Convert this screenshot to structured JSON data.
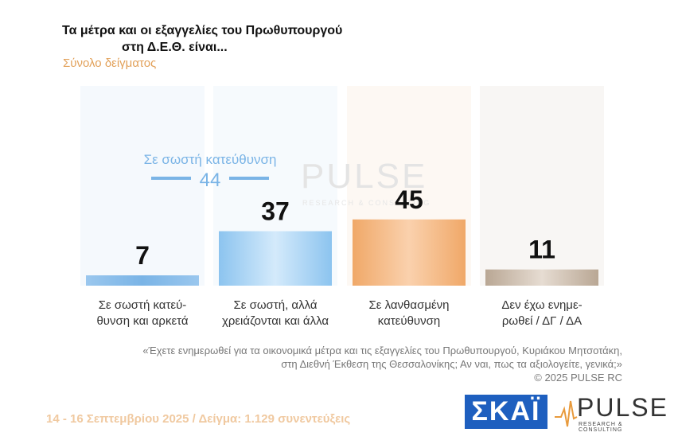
{
  "header": {
    "title_line1": "Τα μέτρα και οι εξαγγελίες του Πρωθυπουργού",
    "title_line2": "στη Δ.Ε.Θ. είναι...",
    "subtitle": "Σύνολο δείγματος"
  },
  "chart_data": {
    "type": "bar",
    "categories": [
      [
        "Σε σωστή κατεύ-",
        "θυνση και αρκετά"
      ],
      [
        "Σε σωστή, αλλά",
        "χρειάζονται και άλλα"
      ],
      [
        "Σε λανθασμένη",
        "κατεύθυνση"
      ],
      [
        "Δεν έχω ενημε-",
        "ρωθεί / ΔΓ / ΔΑ"
      ]
    ],
    "values": [
      7,
      37,
      45,
      11
    ],
    "colors": [
      "#8cbfe8",
      "#a8d2f2",
      "#f1b27a",
      "#c9b9a8"
    ],
    "annotation": {
      "label": "Σε σωστή κατεύθυνση",
      "value": "44"
    },
    "ylim": [
      0,
      55
    ]
  },
  "note": {
    "line1": "«Έχετε ενημερωθεί για τα οικονομικά μέτρα και τις εξαγγελίες του Πρωθυπουργού, Κυριάκου Μητσοτάκη,",
    "line2": "στη Διεθνή Έκθεση της Θεσσαλονίκης; Αν ναι, πως τα αξιολογείτε, γενικά;»",
    "copyright": "©  2025  PULSE RC"
  },
  "footer": {
    "text": "14 - 16 Σεπτεμβρίου 2025  /  Δείγμα:  1.129 συνεντεύξεις"
  },
  "logos": {
    "skai": "ΣΚΑΪ",
    "pulse": "PULSE",
    "pulse_tagline": "RESEARCH & CONSULTING",
    "pulse_watermark": "PULSE",
    "pulse_watermark_tag": "RESEARCH & CONSULTING"
  }
}
